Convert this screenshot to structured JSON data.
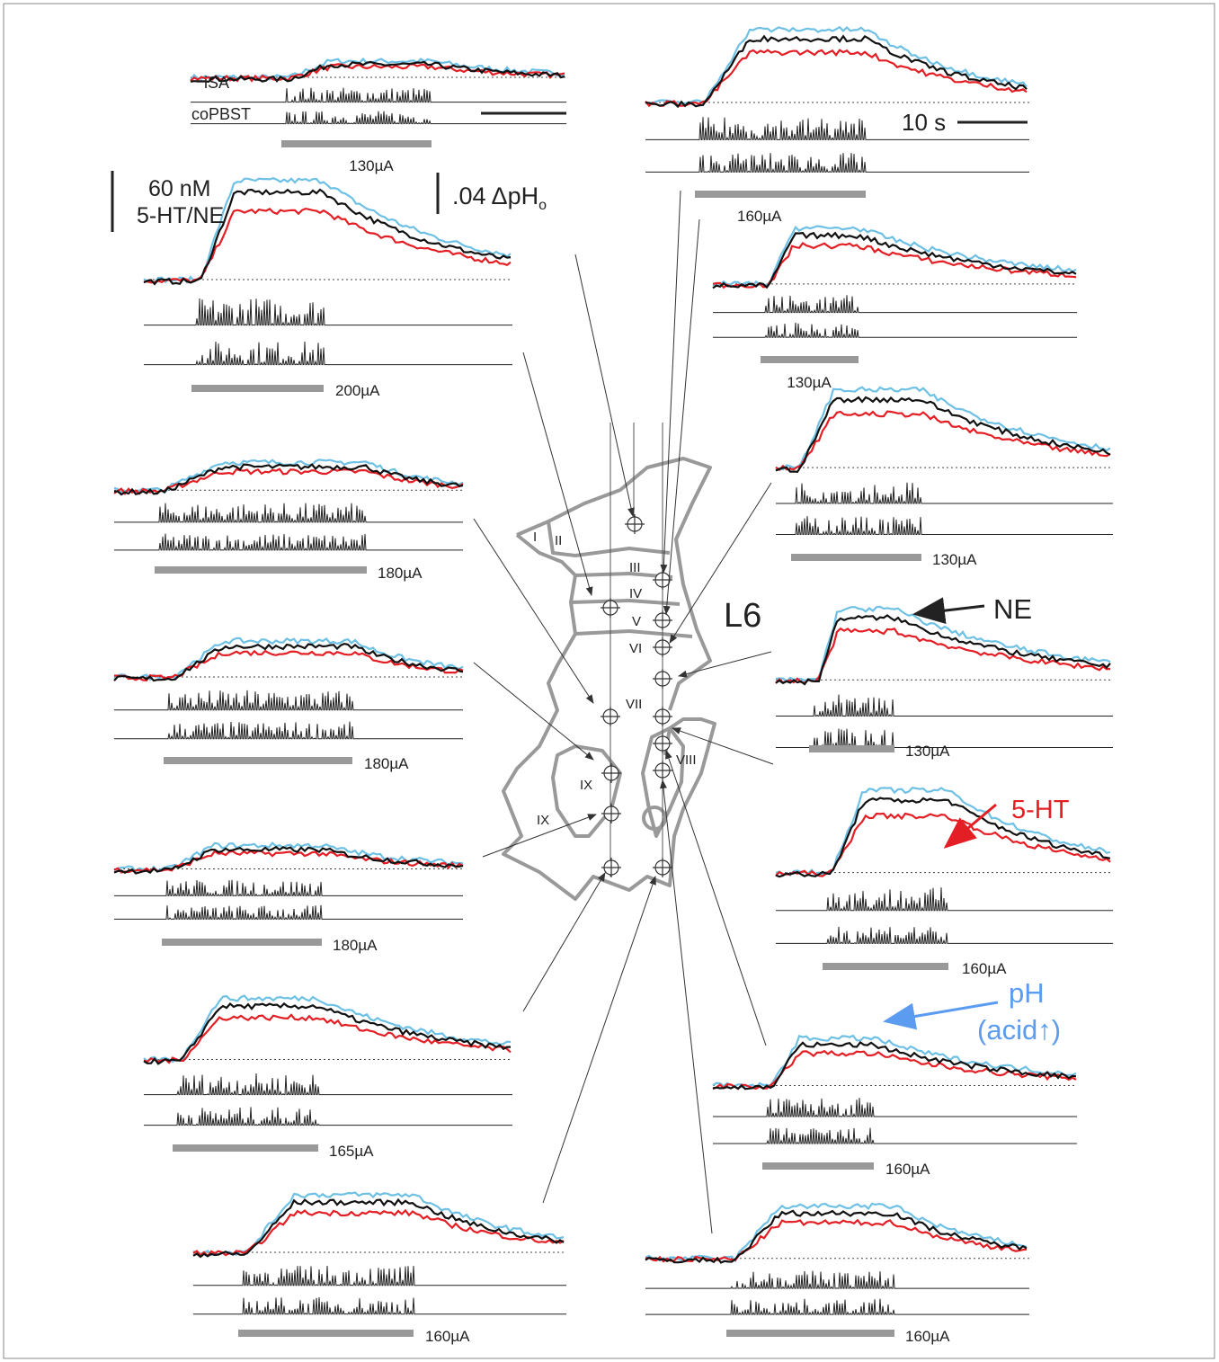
{
  "panels": [
    {
      "stimulus": "130µA"
    },
    {
      "stimulus": "200µA"
    },
    {
      "stimulus": "180µA"
    },
    {
      "stimulus": "180µA"
    },
    {
      "stimulus": "180µA"
    },
    {
      "stimulus": "165µA"
    },
    {
      "stimulus": "160µA"
    },
    {
      "stimulus": "160µA"
    },
    {
      "stimulus": "130µA"
    },
    {
      "stimulus": "130µA"
    },
    {
      "stimulus": "130µA"
    },
    {
      "stimulus": "160µA"
    },
    {
      "stimulus": "160µA"
    },
    {
      "stimulus": "160µA"
    }
  ],
  "trace_labels": {
    "top": "iSA",
    "bottom": "coPBST"
  },
  "scale_bars": {
    "time": "10 s",
    "concentration": "60 nM",
    "transmitters": "5-HT/NE",
    "ph": ".04 ΔpH",
    "ph_subscript": "o"
  },
  "diagram": {
    "segment": "L6",
    "laminae": [
      "I",
      "II",
      "III",
      "IV",
      "V",
      "VI",
      "VII",
      "VIII",
      "IX",
      "IX"
    ]
  },
  "legend": {
    "ne": "NE",
    "serotonin": "5-HT",
    "ph": "pH",
    "ph_note": "(acid↑)"
  }
}
